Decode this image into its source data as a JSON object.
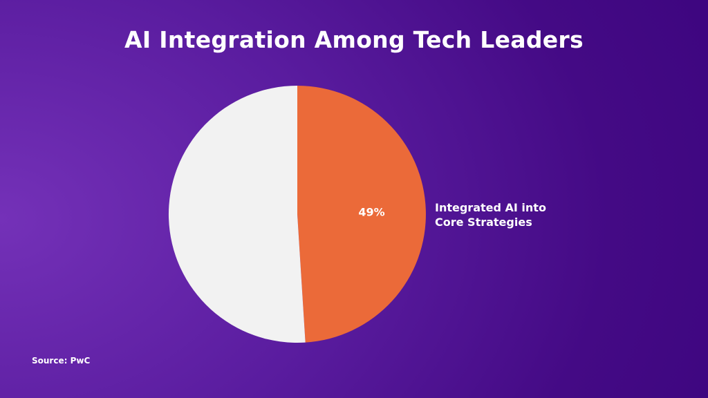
{
  "chart_data": {
    "type": "pie",
    "title": "AI Integration Among Tech Leaders",
    "slices": [
      {
        "label_lines": [
          "Integrated AI into",
          "Core Strategies"
        ],
        "value": 49,
        "value_label": "49%",
        "color": "#eb6a39"
      },
      {
        "label_lines": [],
        "value": 51,
        "value_label": "",
        "color": "#f2f2f2"
      }
    ],
    "legend": "none",
    "source": "Source: PwC"
  }
}
